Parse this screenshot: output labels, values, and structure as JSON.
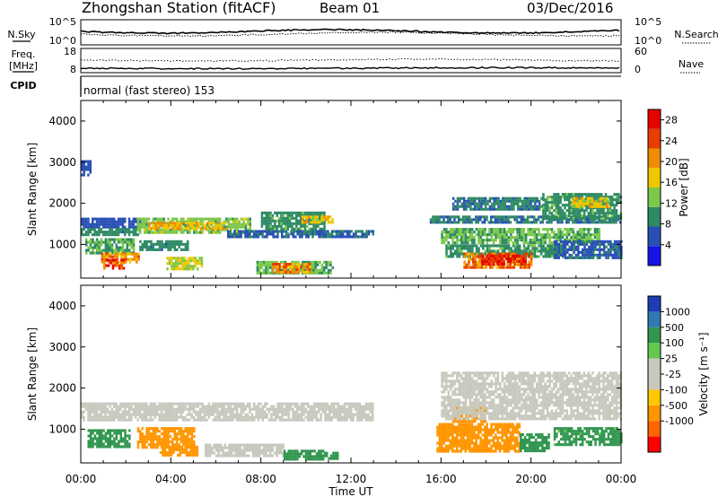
{
  "header": {
    "station": "Zhongshan Station (fitACF)",
    "beam": "Beam 01",
    "date": "03/Dec/2016"
  },
  "status_panels": {
    "nsky": {
      "label": "N.Sky",
      "ticks": [
        "10^5",
        "10^0"
      ]
    },
    "nsearch": {
      "label": "N.Search",
      "ticks": [
        "10^5",
        "10^0"
      ]
    },
    "freq": {
      "label_line1": "Freq.",
      "label_line2": "[MHz]",
      "ticks": [
        "18",
        "8"
      ]
    },
    "nave": {
      "label": "Nave",
      "ticks": [
        "60",
        "0"
      ]
    },
    "cpid": {
      "label": "CPID",
      "text": "normal (fast stereo) 153"
    }
  },
  "colors": {
    "power_scale": [
      "#1414e6",
      "#2850b4",
      "#2d8a64",
      "#7cc84a",
      "#f0c800",
      "#f08c00",
      "#e83c00",
      "#e60000"
    ],
    "velocity_scale": [
      "#ff0000",
      "#ff6400",
      "#ff9600",
      "#ffc800",
      "#c8c8be",
      "#c8c8be",
      "#64c850",
      "#329650",
      "#3278b4",
      "#1e3cb4"
    ],
    "no_data": "#ffffff"
  },
  "chart_data": [
    {
      "type": "heatmap",
      "title": "Zhongshan Station (fitACF)",
      "quantity": "Power",
      "xlabel": "",
      "ylabel": "Slant Range [km]",
      "xlim_hours": [
        0,
        24
      ],
      "ylim_km": [
        180,
        4500
      ],
      "x_ticks": [
        "00:00",
        "04:00",
        "08:00",
        "12:00",
        "16:00",
        "20:00",
        "00:00"
      ],
      "y_ticks": [
        1000,
        2000,
        3000,
        4000
      ],
      "colorbar": {
        "label": "Power [dB]",
        "ticks": [
          4,
          8,
          12,
          16,
          20,
          24,
          28
        ],
        "range": [
          0,
          30
        ]
      },
      "regions": [
        {
          "t0": 0.0,
          "t1": 2.6,
          "r0": 1450,
          "r1": 1650,
          "value": 6
        },
        {
          "t0": 0.0,
          "t1": 2.6,
          "r0": 1250,
          "r1": 1400,
          "value": 9
        },
        {
          "t0": 0.2,
          "t1": 2.4,
          "r0": 800,
          "r1": 1150,
          "value": 11
        },
        {
          "t0": 0.9,
          "t1": 2.6,
          "r0": 550,
          "r1": 800,
          "value": 20
        },
        {
          "t0": 1.0,
          "t1": 1.9,
          "r0": 450,
          "r1": 650,
          "value": 26
        },
        {
          "t0": 2.5,
          "t1": 7.5,
          "r0": 1300,
          "r1": 1650,
          "value": 13
        },
        {
          "t0": 3.0,
          "t1": 6.5,
          "r0": 1380,
          "r1": 1550,
          "value": 18
        },
        {
          "t0": 2.6,
          "t1": 4.8,
          "r0": 880,
          "r1": 1100,
          "value": 9
        },
        {
          "t0": 3.8,
          "t1": 5.4,
          "r0": 430,
          "r1": 700,
          "value": 15
        },
        {
          "t0": 6.5,
          "t1": 9.2,
          "r0": 1200,
          "r1": 1350,
          "value": 7
        },
        {
          "t0": 8.0,
          "t1": 10.8,
          "r0": 1400,
          "r1": 1800,
          "value": 10
        },
        {
          "t0": 9.8,
          "t1": 11.2,
          "r0": 1550,
          "r1": 1700,
          "value": 17
        },
        {
          "t0": 9.3,
          "t1": 13.0,
          "r0": 1200,
          "r1": 1350,
          "value": 7
        },
        {
          "t0": 7.8,
          "t1": 11.2,
          "r0": 300,
          "r1": 600,
          "value": 12
        },
        {
          "t0": 8.5,
          "t1": 10.2,
          "r0": 350,
          "r1": 550,
          "value": 21
        },
        {
          "t0": 15.5,
          "t1": 24.0,
          "r0": 1550,
          "r1": 1700,
          "value": 8
        },
        {
          "t0": 16.0,
          "t1": 23.0,
          "r0": 1050,
          "r1": 1400,
          "value": 12
        },
        {
          "t0": 16.2,
          "t1": 21.5,
          "r0": 700,
          "r1": 1000,
          "value": 10
        },
        {
          "t0": 17.0,
          "t1": 20.0,
          "r0": 450,
          "r1": 800,
          "value": 22
        },
        {
          "t0": 17.8,
          "t1": 19.8,
          "r0": 550,
          "r1": 750,
          "value": 27
        },
        {
          "t0": 16.5,
          "t1": 20.5,
          "r0": 1850,
          "r1": 2150,
          "value": 8
        },
        {
          "t0": 20.5,
          "t1": 24.0,
          "r0": 1600,
          "r1": 2250,
          "value": 10
        },
        {
          "t0": 21.8,
          "t1": 23.5,
          "r0": 1900,
          "r1": 2150,
          "value": 17
        },
        {
          "t0": 21.0,
          "t1": 24.0,
          "r0": 700,
          "r1": 1100,
          "value": 7
        },
        {
          "t0": 0.0,
          "t1": 0.4,
          "r0": 2700,
          "r1": 3050,
          "value": 6
        }
      ]
    },
    {
      "type": "heatmap",
      "quantity": "Velocity",
      "xlabel": "Time UT",
      "ylabel": "Slant Range [km]",
      "xlim_hours": [
        0,
        24
      ],
      "ylim_km": [
        180,
        4500
      ],
      "x_ticks": [
        "00:00",
        "04:00",
        "08:00",
        "12:00",
        "16:00",
        "20:00",
        "00:00"
      ],
      "y_ticks": [
        1000,
        2000,
        3000,
        4000
      ],
      "colorbar": {
        "label": "Velocity [m s⁻¹]",
        "ticks": [
          "1000",
          "500",
          "100",
          "25",
          "-25",
          "-100",
          "-500",
          "-1000"
        ]
      },
      "regions": [
        {
          "t0": 0.0,
          "t1": 13.0,
          "r0": 1200,
          "r1": 1650,
          "value": 0
        },
        {
          "t0": 0.3,
          "t1": 2.2,
          "r0": 600,
          "r1": 1000,
          "value": 150
        },
        {
          "t0": 2.5,
          "t1": 5.0,
          "r0": 550,
          "r1": 1050,
          "value": -250
        },
        {
          "t0": 3.5,
          "t1": 5.2,
          "r0": 400,
          "r1": 600,
          "value": -150
        },
        {
          "t0": 5.5,
          "t1": 9.0,
          "r0": 350,
          "r1": 650,
          "value": 0
        },
        {
          "t0": 9.0,
          "t1": 10.8,
          "r0": 280,
          "r1": 500,
          "value": 300
        },
        {
          "t0": 10.5,
          "t1": 11.4,
          "r0": 300,
          "r1": 450,
          "value": 200
        },
        {
          "t0": 15.8,
          "t1": 19.5,
          "r0": 450,
          "r1": 1150,
          "value": -250
        },
        {
          "t0": 16.5,
          "t1": 18.0,
          "r0": 1200,
          "r1": 1550,
          "value": -150
        },
        {
          "t0": 19.5,
          "t1": 20.8,
          "r0": 500,
          "r1": 900,
          "value": 300
        },
        {
          "t0": 16.0,
          "t1": 24.0,
          "r0": 1250,
          "r1": 2400,
          "value": 0
        },
        {
          "t0": 21.0,
          "t1": 24.0,
          "r0": 650,
          "r1": 1050,
          "value": 120
        }
      ]
    }
  ]
}
